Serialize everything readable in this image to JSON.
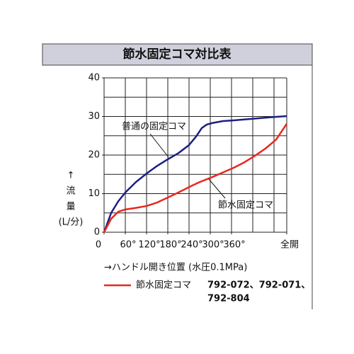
{
  "chart_data": {
    "type": "line",
    "title": "節水固定コマ対比表",
    "x_label": "→ハンドル開き位置 (水圧0.1MPa)",
    "y_label": [
      "↑",
      "流",
      "量",
      "(L/分)"
    ],
    "xlim": [
      0,
      516
    ],
    "ylim": [
      0,
      40
    ],
    "xticks": [
      0,
      {
        "value": 60,
        "label": "60°"
      },
      {
        "value": 120,
        "label": "120°"
      },
      {
        "value": 180,
        "label": "180°"
      },
      {
        "value": 240,
        "label": "240°"
      },
      {
        "value": 300,
        "label": "300°"
      },
      {
        "value": 360,
        "label": "360°"
      },
      {
        "value": 516,
        "label": "全開"
      }
    ],
    "yticks": [
      0,
      10,
      20,
      30,
      40
    ],
    "xgrid_step": 60,
    "ygrid_step": 5,
    "grid": true,
    "series": [
      {
        "name": "普通の固定コマ",
        "color": "#1c1f80",
        "x": [
          0,
          20,
          40,
          60,
          90,
          120,
          150,
          180,
          210,
          240,
          260,
          276,
          290,
          306,
          336,
          366,
          420,
          470,
          516
        ],
        "values": [
          0,
          5,
          8,
          10.3,
          13,
          15.2,
          17.2,
          18.9,
          20.5,
          22.6,
          24.8,
          27,
          27.9,
          28.3,
          28.8,
          29,
          29.4,
          29.8,
          30.1
        ]
      },
      {
        "name": "節水固定コマ",
        "color": "#e8281e",
        "x": [
          0,
          20,
          40,
          60,
          90,
          120,
          150,
          180,
          210,
          240,
          270,
          306,
          336,
          366,
          396,
          426,
          456,
          486,
          516
        ],
        "values": [
          0,
          3.5,
          5.3,
          5.9,
          6.3,
          6.8,
          7.7,
          9,
          10.3,
          11.7,
          13,
          14.3,
          15.5,
          16.7,
          18.1,
          19.8,
          21.7,
          24,
          28.1
        ]
      }
    ],
    "legend_series": 1,
    "legend_note": [
      "792-072、792-071、",
      "792-804"
    ]
  }
}
